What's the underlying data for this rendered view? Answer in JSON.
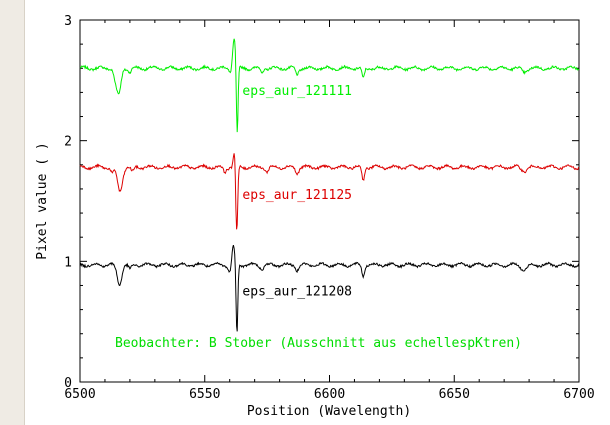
{
  "chart_data": {
    "type": "line",
    "title": "",
    "xlabel": "Position (Wavelength)",
    "ylabel": "Pixel value ( )",
    "xlim": [
      6500,
      6700
    ],
    "ylim": [
      0,
      3
    ],
    "xticks": [
      6500,
      6550,
      6600,
      6650,
      6700
    ],
    "yticks": [
      0,
      1,
      2,
      3
    ],
    "grid": false,
    "annotation": "Beobachter: B Stober (Ausschnitt aus echellespKtren)",
    "colors": {
      "eps_aur_121111": "#00ee00",
      "eps_aur_121125": "#dd0000",
      "eps_aur_121208": "#000000",
      "annotation": "#00dd00"
    },
    "series": [
      {
        "name": "eps_aur_121111",
        "color": "#00ee00",
        "baseline": 2.6,
        "features": [
          {
            "x": 6515.5,
            "depth": -0.22,
            "width": 0.9
          },
          {
            "x": 6514.0,
            "depth": -0.06,
            "width": 0.6
          },
          {
            "x": 6520.0,
            "depth": -0.03,
            "width": 0.6
          },
          {
            "x": 6561.8,
            "depth": 0.25,
            "width": 0.7
          },
          {
            "x": 6563.0,
            "depth": -0.6,
            "width": 0.35
          },
          {
            "x": 6560.5,
            "depth": -0.05,
            "width": 0.6
          },
          {
            "x": 6573.0,
            "depth": -0.04,
            "width": 0.5
          },
          {
            "x": 6587.0,
            "depth": -0.05,
            "width": 0.6
          },
          {
            "x": 6613.5,
            "depth": -0.09,
            "width": 0.5
          },
          {
            "x": 6678.0,
            "depth": -0.03,
            "width": 1.0
          }
        ]
      },
      {
        "name": "eps_aur_121125",
        "color": "#dd0000",
        "baseline": 1.78,
        "features": [
          {
            "x": 6516.0,
            "depth": -0.2,
            "width": 1.0
          },
          {
            "x": 6513.0,
            "depth": -0.05,
            "width": 0.6
          },
          {
            "x": 6521.0,
            "depth": -0.04,
            "width": 0.6
          },
          {
            "x": 6562.0,
            "depth": 0.15,
            "width": 0.5
          },
          {
            "x": 6562.8,
            "depth": -0.58,
            "width": 0.4
          },
          {
            "x": 6558.0,
            "depth": -0.04,
            "width": 0.6
          },
          {
            "x": 6575.0,
            "depth": -0.04,
            "width": 0.6
          },
          {
            "x": 6587.0,
            "depth": -0.05,
            "width": 0.6
          },
          {
            "x": 6613.5,
            "depth": -0.11,
            "width": 0.5
          },
          {
            "x": 6678.0,
            "depth": -0.03,
            "width": 1.0
          }
        ]
      },
      {
        "name": "eps_aur_121208",
        "color": "#000000",
        "baseline": 0.97,
        "features": [
          {
            "x": 6515.8,
            "depth": -0.16,
            "width": 0.9
          },
          {
            "x": 6520.0,
            "depth": -0.04,
            "width": 0.6
          },
          {
            "x": 6561.5,
            "depth": 0.15,
            "width": 0.6
          },
          {
            "x": 6562.9,
            "depth": -0.58,
            "width": 0.35
          },
          {
            "x": 6560.0,
            "depth": -0.06,
            "width": 0.6
          },
          {
            "x": 6573.0,
            "depth": -0.04,
            "width": 0.6
          },
          {
            "x": 6587.0,
            "depth": -0.04,
            "width": 0.6
          },
          {
            "x": 6613.5,
            "depth": -0.09,
            "width": 0.5
          },
          {
            "x": 6678.0,
            "depth": -0.04,
            "width": 1.2
          }
        ]
      }
    ]
  }
}
